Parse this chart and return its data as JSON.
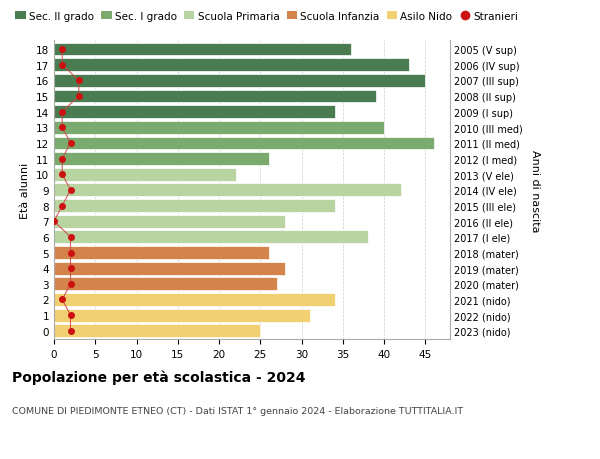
{
  "ages": [
    18,
    17,
    16,
    15,
    14,
    13,
    12,
    11,
    10,
    9,
    8,
    7,
    6,
    5,
    4,
    3,
    2,
    1,
    0
  ],
  "year_labels": [
    "2005 (V sup)",
    "2006 (IV sup)",
    "2007 (III sup)",
    "2008 (II sup)",
    "2009 (I sup)",
    "2010 (III med)",
    "2011 (II med)",
    "2012 (I med)",
    "2013 (V ele)",
    "2014 (IV ele)",
    "2015 (III ele)",
    "2016 (II ele)",
    "2017 (I ele)",
    "2018 (mater)",
    "2019 (mater)",
    "2020 (mater)",
    "2021 (nido)",
    "2022 (nido)",
    "2023 (nido)"
  ],
  "bar_values": [
    36,
    43,
    45,
    39,
    34,
    40,
    46,
    26,
    22,
    42,
    34,
    28,
    38,
    26,
    28,
    27,
    34,
    31,
    25
  ],
  "bar_colors": [
    "#4a7c52",
    "#4a7c52",
    "#4a7c52",
    "#4a7c52",
    "#4a7c52",
    "#7aaa6e",
    "#7aaa6e",
    "#7aaa6e",
    "#b8d4a0",
    "#b8d4a0",
    "#b8d4a0",
    "#b8d4a0",
    "#b8d4a0",
    "#d4834a",
    "#d4834a",
    "#d4834a",
    "#f0d070",
    "#f0d070",
    "#f0d070"
  ],
  "stranieri_values": [
    1,
    1,
    3,
    3,
    1,
    1,
    2,
    1,
    1,
    2,
    1,
    0,
    2,
    2,
    2,
    2,
    1,
    2,
    2
  ],
  "legend_labels": [
    "Sec. II grado",
    "Sec. I grado",
    "Scuola Primaria",
    "Scuola Infanzia",
    "Asilo Nido",
    "Stranieri"
  ],
  "legend_colors": [
    "#4a7c52",
    "#7aaa6e",
    "#b8d4a0",
    "#d4834a",
    "#f0d070",
    "#cc1111"
  ],
  "ylabel": "Età alunni",
  "ylabel_right": "Anni di nascita",
  "title": "Popolazione per età scolastica - 2024",
  "subtitle": "COMUNE DI PIEDIMONTE ETNEO (CT) - Dati ISTAT 1° gennaio 2024 - Elaborazione TUTTITALIA.IT",
  "xlim": [
    0,
    48
  ],
  "xticks": [
    0,
    5,
    10,
    15,
    20,
    25,
    30,
    35,
    40,
    45
  ],
  "bar_height": 0.82,
  "stranieri_color": "#cc1111",
  "stranieri_line_color": "#cc4444",
  "bg_color": "#ffffff",
  "grid_color": "#cccccc"
}
